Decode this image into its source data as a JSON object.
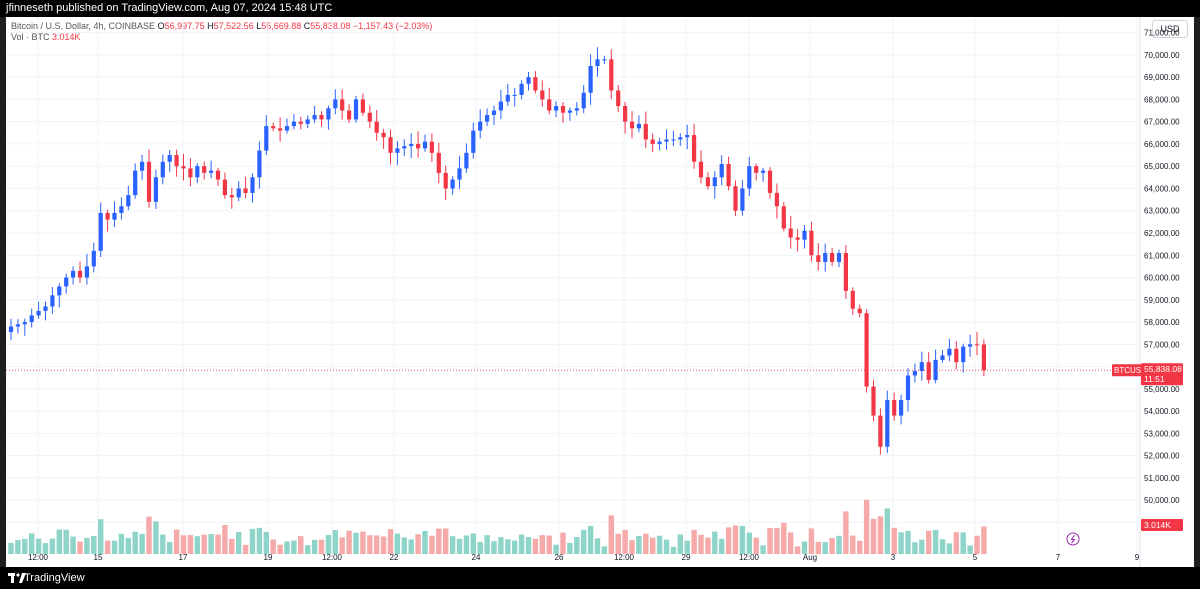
{
  "header": {
    "publisher_line": "jfinneseth published on TradingView.com, Aug 07, 2024 15:48 UTC"
  },
  "footer": {
    "brand": "TradingView"
  },
  "legend": {
    "symbol_desc": "Bitcoin / U.S. Dollar, 4h, COINBASE",
    "open_label": "O",
    "open_value": "56,997.75",
    "high_label": "H",
    "high_value": "57,522.56",
    "low_label": "L",
    "low_value": "55,669.88",
    "close_label": "C",
    "close_value": "55,838.08",
    "change": "−1,157.43 (−2.03%)",
    "vol_label": "Vol · BTC",
    "vol_value": "3.014K"
  },
  "currency_button": "USD",
  "price_badge": {
    "symbol": "BTCUSD",
    "price": "55,838.08",
    "countdown": "11:51"
  },
  "volume_badge": "3.014K",
  "colors": {
    "up": "#2962ff",
    "down": "#f23645",
    "vol_up": "#8ed4c9",
    "vol_down": "#f5a9a9"
  },
  "chart_data": {
    "type": "candlestick",
    "timeframe": "4h",
    "ylim": [
      47000,
      71700
    ],
    "y_ticks": [
      "49,000.00",
      "50,000.00",
      "51,000.00",
      "52,000.00",
      "53,000.00",
      "54,000.00",
      "55,000.00",
      "56,000.00",
      "57,000.00",
      "58,000.00",
      "59,000.00",
      "60,000.00",
      "61,000.00",
      "62,000.00",
      "63,000.00",
      "64,000.00",
      "65,000.00",
      "66,000.00",
      "67,000.00",
      "68,000.00",
      "69,000.00",
      "70,000.00",
      "71,000.00"
    ],
    "x_ticks": [
      "12:00",
      "15",
      "17",
      "19",
      "12:00",
      "22",
      "24",
      "26",
      "12:00",
      "29",
      "12:00",
      "Aug",
      "3",
      "5",
      "7",
      "9"
    ],
    "last_price": 55838.08,
    "closes": [
      57800,
      57900,
      58000,
      58300,
      58500,
      58700,
      59200,
      59600,
      60000,
      60300,
      60000,
      60500,
      61200,
      62900,
      62600,
      62900,
      63200,
      63700,
      64800,
      65200,
      63400,
      64500,
      65200,
      65500,
      65000,
      64900,
      64500,
      65000,
      64700,
      64800,
      64400,
      63700,
      63600,
      64000,
      63800,
      64500,
      65700,
      66800,
      66700,
      66600,
      66800,
      67000,
      66900,
      67100,
      67300,
      67100,
      67600,
      68000,
      67500,
      67100,
      68000,
      67400,
      67000,
      66500,
      66300,
      65600,
      65800,
      65900,
      66000,
      65800,
      66100,
      65600,
      64700,
      64000,
      64400,
      64900,
      65600,
      66600,
      67000,
      67300,
      67500,
      67900,
      68200,
      68200,
      68700,
      69000,
      68400,
      68000,
      67500,
      67700,
      67400,
      67500,
      67600,
      68300,
      69500,
      69800,
      69800,
      68400,
      67700,
      67000,
      66700,
      66900,
      66200,
      66000,
      66100,
      66200,
      66200,
      66300,
      66400,
      65200,
      64500,
      64100,
      64500,
      65100,
      64100,
      63000,
      64000,
      65000,
      64700,
      64800,
      63800,
      63200,
      62200,
      61800,
      61700,
      62100,
      61000,
      60700,
      61100,
      60700,
      61100,
      59400,
      58600,
      58400,
      55100,
      53800,
      52400,
      54500,
      53800,
      54500,
      55600,
      55800,
      56200,
      55400,
      56300,
      56500,
      56800,
      56200,
      56900,
      57000,
      56996,
      55838
    ],
    "volume_max": 9.2
  }
}
